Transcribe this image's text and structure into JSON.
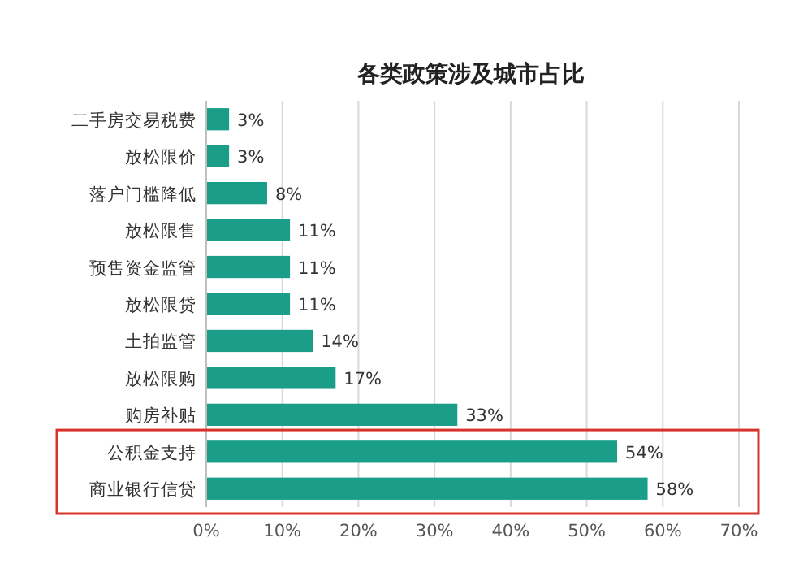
{
  "chart_data": {
    "type": "bar",
    "orientation": "horizontal",
    "title": "各类政策涉及城市占比",
    "categories": [
      "二手房交易税费",
      "放松限价",
      "落户门槛降低",
      "放松限售",
      "预售资金监管",
      "放松限贷",
      "土拍监管",
      "放松限购",
      "购房补贴",
      "公积金支持",
      "商业银行信贷"
    ],
    "values": [
      3,
      3,
      8,
      11,
      11,
      11,
      14,
      17,
      33,
      54,
      58
    ],
    "value_labels": [
      "3%",
      "3%",
      "8%",
      "11%",
      "11%",
      "11%",
      "14%",
      "17%",
      "33%",
      "54%",
      "58%"
    ],
    "color": "#1a9e8a",
    "xlim": [
      0,
      70
    ],
    "xticks": [
      {
        "value": 0,
        "label": "0%"
      },
      {
        "value": 10,
        "label": "10%"
      },
      {
        "value": 20,
        "label": "20%"
      },
      {
        "value": 30,
        "label": "30%"
      },
      {
        "value": 40,
        "label": "40%"
      },
      {
        "value": 50,
        "label": "50%"
      },
      {
        "value": 60,
        "label": "60%"
      },
      {
        "value": 70,
        "label": "70%"
      }
    ],
    "grid": "x"
  }
}
